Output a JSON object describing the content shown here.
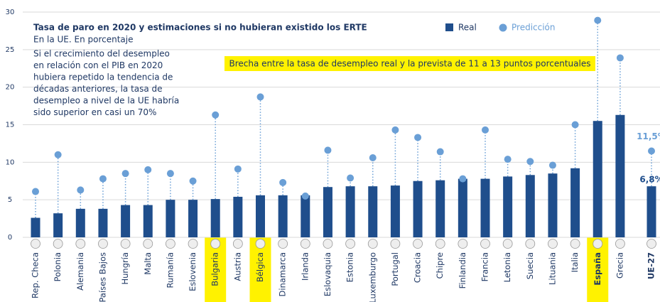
{
  "chart_data": {
    "type": "bar",
    "title": "Tasa de paro en 2020 y estimaciones si no hubieran existido los ERTE",
    "subtitle": "En la UE. En porcentaje",
    "note": [
      "Si el crecimiento del desempleo",
      "en relación con el PIB en 2020",
      "hubiera repetido la tendencia de",
      "décadas anteriores, la tasa de",
      "desempleo a nivel de la UE habría",
      "sido superior en casi un 70%"
    ],
    "annotation": "Brecha entre la tasa de desempleo real y la prevista de 11 a 13 puntos porcentuales",
    "categories": [
      "Rep. Checa",
      "Polonia",
      "Alemania",
      "Países Bajos",
      "Hungría",
      "Malta",
      "Rumanía",
      "Eslovenia",
      "Bulgaria",
      "Austria",
      "Bélgica",
      "Dinamarca",
      "Irlanda",
      "Eslovaquia",
      "Estonia",
      "Luxemburgo",
      "Portugal",
      "Croacia",
      "Chipre",
      "Finlandia",
      "Francia",
      "Letonia",
      "Suecia",
      "Lituania",
      "Italia",
      "España",
      "Grecia",
      "UE-27"
    ],
    "highlight_categories": [
      "Bulgaria",
      "Bélgica",
      "España"
    ],
    "highlight_color": "#fff200",
    "series": [
      {
        "name": "Real",
        "color": "#1f4e8c",
        "values": [
          2.6,
          3.2,
          3.8,
          3.8,
          4.3,
          4.3,
          5.0,
          5.0,
          5.1,
          5.4,
          5.6,
          5.6,
          5.6,
          6.7,
          6.8,
          6.8,
          6.9,
          7.5,
          7.6,
          7.8,
          7.8,
          8.1,
          8.3,
          8.5,
          9.2,
          15.5,
          16.3,
          6.8
        ],
        "value_labels": [
          null,
          null,
          null,
          null,
          null,
          null,
          null,
          null,
          null,
          null,
          null,
          null,
          null,
          null,
          null,
          null,
          null,
          null,
          null,
          null,
          null,
          null,
          null,
          null,
          null,
          null,
          null,
          "6,8%"
        ]
      },
      {
        "name": "Predicción",
        "color": "#6a9fd6",
        "values": [
          6.1,
          11.0,
          6.3,
          7.8,
          8.5,
          9.0,
          8.5,
          7.5,
          16.3,
          9.1,
          18.7,
          7.3,
          5.5,
          11.6,
          7.9,
          10.6,
          14.3,
          13.3,
          11.4,
          7.8,
          14.3,
          10.4,
          10.1,
          9.6,
          15.0,
          28.9,
          23.9,
          11.5
        ],
        "value_labels": [
          null,
          null,
          null,
          null,
          null,
          null,
          null,
          null,
          null,
          null,
          null,
          null,
          null,
          null,
          null,
          null,
          null,
          null,
          null,
          null,
          null,
          null,
          null,
          null,
          null,
          null,
          null,
          "11,5%"
        ]
      }
    ],
    "ylim": [
      0,
      30
    ],
    "yticks": [
      0,
      5,
      10,
      15,
      20,
      25,
      30
    ],
    "grid": true
  }
}
